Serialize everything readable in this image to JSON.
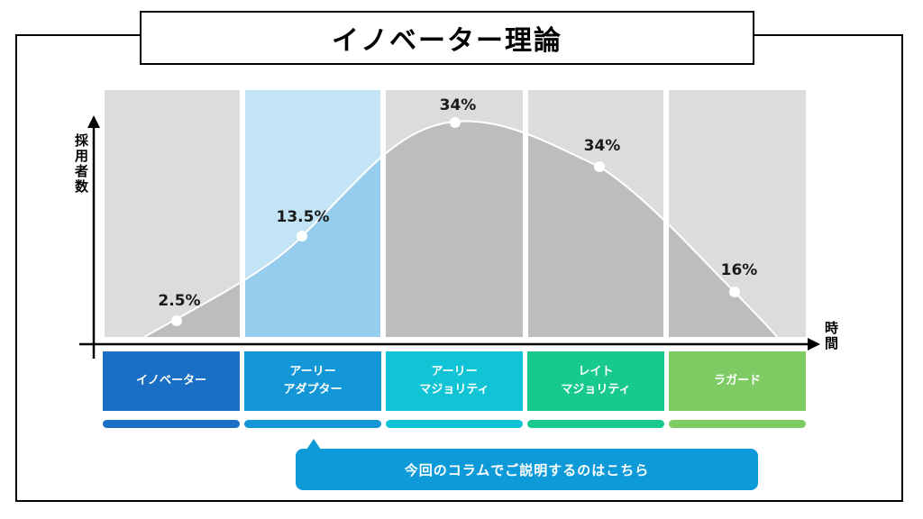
{
  "title": "イノベーター理論",
  "axes": {
    "y_label": "採用者数",
    "x_label": "時間"
  },
  "chart_data": {
    "type": "area",
    "title": "イノベーター理論",
    "ylabel": "採用者数",
    "xlabel": "時間",
    "categories": [
      "イノベーター",
      "アーリーアダプター",
      "アーリーマジョリティ",
      "レイトマジョリティ",
      "ラガード"
    ],
    "values": [
      "2.5%",
      "13.5%",
      "34%",
      "34%",
      "16%"
    ],
    "highlighted_category": "アーリーアダプター"
  },
  "categories": [
    {
      "label": "イノベーター",
      "color": "#1a6fc4"
    },
    {
      "label": "アーリー\nアダプター",
      "color": "#1497d7"
    },
    {
      "label": "アーリー\nマジョリティ",
      "color": "#10c4d6"
    },
    {
      "label": "レイト\nマジョリティ",
      "color": "#17c98f"
    },
    {
      "label": "ラガード",
      "color": "#7fcb63"
    }
  ],
  "percents": [
    "2.5%",
    "13.5%",
    "34%",
    "34%",
    "16%"
  ],
  "callout": {
    "text": "今回のコラムでご説明するのはこちら"
  },
  "colors": {
    "panel_bg": "#dcdcdc",
    "curve_fill": "#bdbdbd",
    "highlight_panel": "#c3e4f5",
    "highlight_fill": "#97cdec",
    "axis": "#000000"
  }
}
